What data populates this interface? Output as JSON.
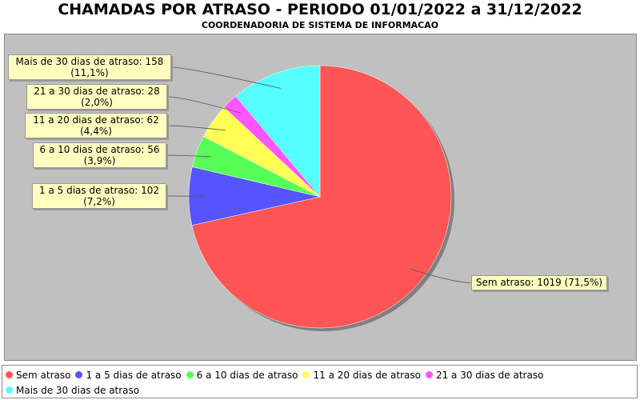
{
  "chart_data": {
    "type": "pie",
    "title": "CHAMADAS POR ATRASO - PERIODO 01/01/2022 a 31/12/2022",
    "subtitle": "COORDENADORIA DE SISTEMA DE INFORMACAO",
    "categories": [
      "Sem atraso",
      "1 a 5 dias de atraso",
      "6 a 10 dias de atraso",
      "11 a 20 dias de atraso",
      "21 a 30 dias de atraso",
      "Mais de 30 dias de atraso"
    ],
    "values": [
      1019,
      102,
      56,
      62,
      28,
      158
    ],
    "value_labels": [
      "Sem atraso: 1019 (71,5%)",
      "1 a 5 dias de atraso: 102\n(7,2%)",
      "6 a 10 dias de atraso: 56\n(3,9%)",
      "11 a 20 dias de atraso: 62\n(4,4%)",
      "21 a 30 dias de atraso: 28\n(2,0%)",
      "Mais de 30 dias de atraso: 158\n(11,1%)"
    ],
    "colors": [
      "#ff5555",
      "#5555ff",
      "#55ff55",
      "#ffff55",
      "#ff55ff",
      "#55ffff"
    ],
    "legend": "bottom"
  }
}
